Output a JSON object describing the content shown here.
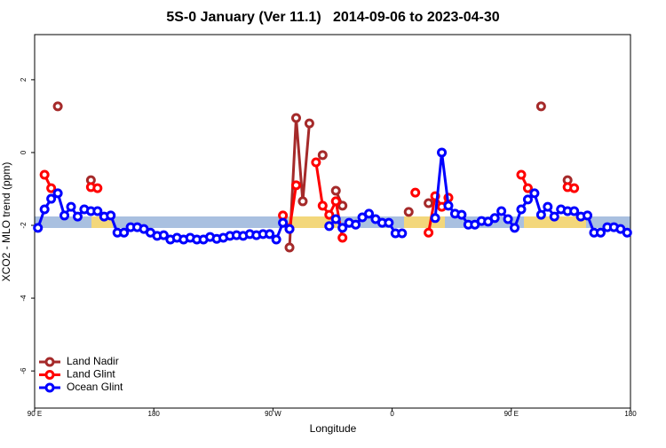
{
  "chart_data": {
    "type": "line",
    "title": "5S-0 January (Ver 11.1)   2014-09-06 to 2023-04-30",
    "x_label": "Longitude",
    "y_label": "XCO2 - MLO trend (ppm)",
    "x": [
      92.5,
      97.5,
      102.5,
      107.5,
      112.5,
      117.5,
      122.5,
      127.5,
      132.5,
      137.5,
      142.5,
      147.5,
      152.5,
      157.5,
      162.5,
      167.5,
      172.5,
      177.5,
      182.5,
      187.5,
      192.5,
      197.5,
      202.5,
      207.5,
      212.5,
      217.5,
      222.5,
      227.5,
      232.5,
      237.5,
      242.5,
      247.5,
      252.5,
      257.5,
      262.5,
      267.5,
      272.5,
      277.5,
      282.5,
      287.5,
      292.5,
      297.5,
      302.5,
      307.5,
      312.5,
      317.5,
      322.5,
      327.5,
      332.5,
      337.5,
      342.5,
      347.5,
      352.5,
      357.5,
      362.5,
      367.5,
      372.5,
      377.5,
      382.5,
      387.5,
      392.5,
      397.5,
      402.5,
      407.5,
      412.5,
      417.5,
      422.5,
      427.5,
      432.5,
      437.5,
      442.5,
      447.5,
      452.5,
      457.5,
      462.5,
      467.5,
      472.5,
      477.5,
      482.5,
      487.5,
      492.5,
      497.5,
      502.5,
      507.5,
      512.5,
      517.5,
      522.5,
      527.5,
      532.5,
      537.5
    ],
    "series": [
      {
        "name": "Land Nadir",
        "color": "#a52a2a",
        "values": [
          null,
          null,
          null,
          1.27,
          null,
          null,
          null,
          null,
          -0.76,
          null,
          null,
          null,
          null,
          null,
          null,
          null,
          null,
          null,
          null,
          null,
          null,
          null,
          null,
          null,
          null,
          null,
          null,
          null,
          null,
          null,
          null,
          null,
          null,
          null,
          null,
          null,
          null,
          null,
          -2.61,
          0.95,
          -1.34,
          0.8,
          null,
          -0.07,
          null,
          -1.05,
          -1.46,
          null,
          null,
          null,
          null,
          null,
          null,
          null,
          null,
          null,
          -1.63,
          null,
          null,
          -1.39,
          null,
          null,
          null,
          null,
          null,
          null,
          null,
          null,
          null,
          null,
          null,
          null,
          null,
          null,
          null,
          null,
          1.27,
          null,
          null,
          null,
          -0.76,
          null,
          null,
          null,
          null,
          null,
          null,
          null,
          null,
          null
        ]
      },
      {
        "name": "Land Glint",
        "color": "#ff0000",
        "values": [
          null,
          -0.61,
          -0.98,
          null,
          null,
          null,
          null,
          null,
          -0.95,
          -0.98,
          null,
          null,
          null,
          null,
          null,
          null,
          null,
          null,
          null,
          null,
          null,
          null,
          null,
          null,
          null,
          null,
          null,
          null,
          null,
          null,
          null,
          null,
          null,
          null,
          null,
          null,
          null,
          -1.73,
          -2.1,
          -0.9,
          null,
          null,
          -0.27,
          -1.46,
          -1.71,
          -1.34,
          -2.34,
          null,
          null,
          null,
          null,
          null,
          null,
          null,
          null,
          null,
          null,
          -1.1,
          null,
          -2.2,
          -1.2,
          -1.49,
          -1.24,
          null,
          null,
          null,
          null,
          null,
          null,
          null,
          null,
          null,
          null,
          -0.61,
          -0.98,
          null,
          null,
          null,
          null,
          null,
          -0.95,
          -0.98,
          null,
          null,
          null,
          null,
          null,
          null,
          null,
          null
        ]
      },
      {
        "name": "Ocean Glint",
        "color": "#0000ff",
        "values": [
          -2.07,
          -1.56,
          -1.27,
          -1.12,
          -1.73,
          -1.49,
          -1.76,
          -1.56,
          -1.61,
          -1.61,
          -1.76,
          -1.73,
          -2.2,
          -2.2,
          -2.05,
          -2.05,
          -2.1,
          -2.2,
          -2.29,
          -2.27,
          -2.39,
          -2.34,
          -2.39,
          -2.34,
          -2.39,
          -2.39,
          -2.32,
          -2.37,
          -2.34,
          -2.29,
          -2.27,
          -2.29,
          -2.24,
          -2.27,
          -2.24,
          -2.24,
          -2.39,
          -1.93,
          -2.1,
          null,
          null,
          null,
          null,
          null,
          -2.02,
          -1.83,
          -2.07,
          -1.93,
          -1.98,
          -1.78,
          -1.68,
          -1.83,
          -1.93,
          -1.93,
          -2.22,
          -2.22,
          null,
          null,
          null,
          null,
          -1.8,
          0,
          -1.46,
          -1.68,
          -1.71,
          -1.98,
          -1.98,
          -1.88,
          -1.9,
          -1.8,
          -1.61,
          -1.83,
          -2.07,
          -1.56,
          -1.29,
          -1.12,
          -1.71,
          -1.49,
          -1.76,
          -1.56,
          -1.61,
          -1.61,
          -1.76,
          -1.73,
          -2.2,
          -2.2,
          -2.05,
          -2.05,
          -2.1,
          -2.2
        ]
      }
    ],
    "xlim": [
      90,
      540
    ],
    "xticks": [
      {
        "value": 90,
        "label": "90 E"
      },
      180,
      {
        "value": 270,
        "label": "90 W"
      },
      {
        "value": 360,
        "label": "0"
      },
      {
        "value": 450,
        "label": "90 E"
      },
      {
        "value": 540,
        "label": "180"
      }
    ],
    "ylim": [
      -7.02,
      3.24
    ],
    "yticks": [
      -6,
      -4,
      -2,
      0,
      2
    ],
    "legend": "bottomleft"
  }
}
